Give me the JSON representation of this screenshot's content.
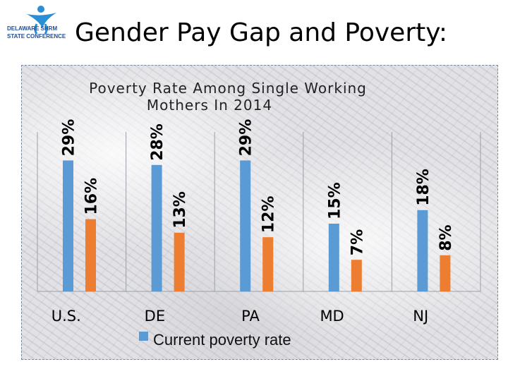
{
  "logo": {
    "line1": "DELAWARE SHRM",
    "line2": "STATE CONFERENCE"
  },
  "slide": {
    "title": "Gender Pay Gap and Poverty:"
  },
  "colors": {
    "series_blue": "#5b9bd5",
    "series_orange": "#ed7d31",
    "grid": "#9aa0a8"
  },
  "chart_data": {
    "type": "bar",
    "title_lines": [
      "Poverty Rate Among Single Working",
      "Mothers In 2014"
    ],
    "categories": [
      "U.S.",
      "DE",
      "PA",
      "MD",
      "NJ"
    ],
    "series": [
      {
        "name": "Current poverty rate",
        "values": [
          29,
          28,
          29,
          15,
          18
        ],
        "labels": [
          "29%",
          "28%",
          "29%",
          "15%",
          "18%"
        ]
      },
      {
        "values": [
          16,
          13,
          12,
          7,
          8
        ],
        "labels": [
          "16%",
          "13%",
          "12%",
          "7%",
          "8%"
        ]
      }
    ],
    "ylim": [
      0,
      30
    ],
    "grid": "vertical separators",
    "legend": "bottom"
  }
}
